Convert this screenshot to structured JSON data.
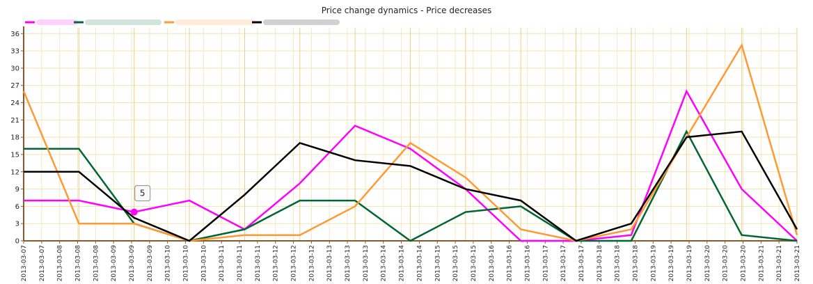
{
  "chart_data": {
    "type": "line",
    "title": "Price change dynamics - Price decreases",
    "ylim": [
      0,
      37
    ],
    "yticks": [
      0,
      3,
      6,
      9,
      12,
      15,
      18,
      21,
      24,
      27,
      30,
      33,
      36
    ],
    "x_tick_labels": [
      "2013-03-07",
      "2013-03-07",
      "2013-03-08",
      "2013-03-08",
      "2013-03-08",
      "2013-03-09",
      "2013-03-09",
      "2013-03-09",
      "2013-03-10",
      "2013-03-10",
      "2013-03-10",
      "2013-03-11",
      "2013-03-11",
      "2013-03-11",
      "2013-03-12",
      "2013-03-12",
      "2013-03-12",
      "2013-03-13",
      "2013-03-13",
      "2013-03-13",
      "2013-03-14",
      "2013-03-14",
      "2013-03-14",
      "2013-03-15",
      "2013-03-15",
      "2013-03-15",
      "2013-03-16",
      "2013-03-16",
      "2013-03-16",
      "2013-03-17",
      "2013-03-17",
      "2013-03-17",
      "2013-03-18",
      "2013-03-18",
      "2013-03-18",
      "2013-03-19",
      "2013-03-19",
      "2013-03-19",
      "2013-03-20",
      "2013-03-20",
      "2013-03-20",
      "2013-03-21",
      "2013-03-21",
      "2013-03-21"
    ],
    "x": [
      "2013-03-07",
      "2013-03-08",
      "2013-03-09",
      "2013-03-10",
      "2013-03-11",
      "2013-03-12",
      "2013-03-13",
      "2013-03-14",
      "2013-03-15",
      "2013-03-16",
      "2013-03-17",
      "2013-03-18",
      "2013-03-19",
      "2013-03-20",
      "2013-03-21"
    ],
    "grid": true,
    "legend": "top-left",
    "series": [
      {
        "color": "#ff00ff",
        "values": [
          7,
          7,
          5,
          7,
          2,
          10,
          20,
          16,
          9,
          0,
          0,
          1,
          26,
          9,
          0
        ]
      },
      {
        "color": "#006633",
        "values": [
          16,
          16,
          3,
          0,
          2,
          7,
          7,
          0,
          5,
          6,
          0,
          0,
          19,
          1,
          0
        ]
      },
      {
        "color": "#ff9933",
        "values": [
          26,
          3,
          3,
          0,
          1,
          1,
          6,
          17,
          11,
          2,
          0,
          2,
          18,
          34,
          1
        ]
      },
      {
        "color": "#000000",
        "values": [
          12,
          12,
          4,
          0,
          8,
          17,
          14,
          13,
          9,
          7,
          0,
          3,
          18,
          19,
          2
        ]
      }
    ],
    "tooltip": {
      "series_index": 0,
      "point_index": 2,
      "value": "5"
    }
  }
}
